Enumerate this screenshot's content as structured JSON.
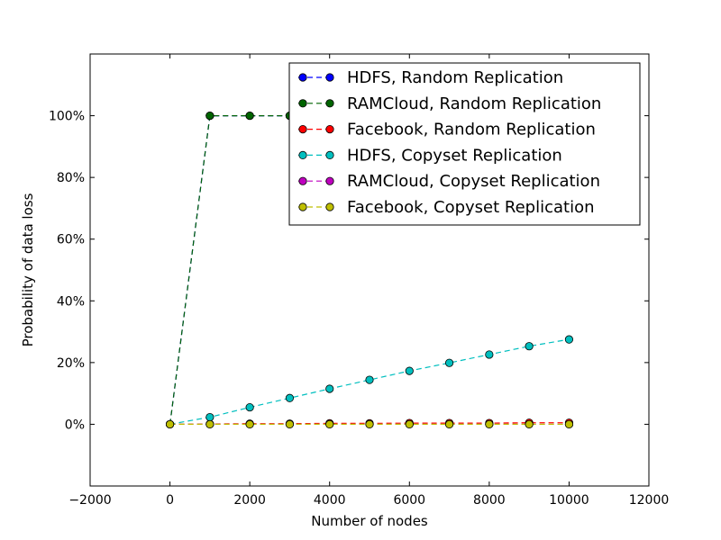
{
  "chart_data": {
    "type": "line",
    "title": "",
    "xlabel": "Number of nodes",
    "ylabel": "Probability of data loss",
    "xlim": [
      -2000,
      12000
    ],
    "ylim": [
      -20,
      120
    ],
    "xticks": [
      -2000,
      0,
      2000,
      4000,
      6000,
      8000,
      10000,
      12000
    ],
    "xtick_labels": [
      "−2000",
      "0",
      "2000",
      "4000",
      "6000",
      "8000",
      "10000",
      "12000"
    ],
    "yticks": [
      0,
      20,
      40,
      60,
      80,
      100
    ],
    "ytick_labels": [
      "0%",
      "20%",
      "40%",
      "60%",
      "80%",
      "100%"
    ],
    "grid": false,
    "legend_position": "top-right",
    "x": [
      0,
      1000,
      2000,
      3000,
      4000,
      5000,
      6000,
      7000,
      8000,
      9000,
      10000
    ],
    "series": [
      {
        "name": "HDFS, Random Replication",
        "color": "#0000ff",
        "values": [
          0,
          100,
          100,
          100,
          100,
          100,
          100,
          100,
          100,
          100,
          100
        ]
      },
      {
        "name": "RAMCloud, Random Replication",
        "color": "#006400",
        "values": [
          0,
          100,
          100,
          100,
          100,
          100,
          100,
          100,
          100,
          100,
          100
        ]
      },
      {
        "name": "Facebook, Random Replication",
        "color": "#ff0000",
        "values": [
          0,
          0.1,
          0.2,
          0.2,
          0.3,
          0.3,
          0.4,
          0.4,
          0.4,
          0.5,
          0.5
        ]
      },
      {
        "name": "HDFS, Copyset Replication",
        "color": "#00bfbf",
        "values": [
          0,
          2.3,
          5.5,
          8.5,
          11.5,
          14.4,
          17.3,
          19.9,
          22.6,
          25.3,
          27.5
        ]
      },
      {
        "name": "RAMCloud, Copyset Replication",
        "color": "#bf00bf",
        "values": [
          0,
          0,
          0,
          0,
          0,
          0,
          0,
          0,
          0,
          0,
          0
        ]
      },
      {
        "name": "Facebook, Copyset Replication",
        "color": "#bfbf00",
        "values": [
          0,
          0,
          0,
          0,
          0,
          0,
          0,
          0,
          0,
          0,
          0
        ]
      }
    ]
  }
}
